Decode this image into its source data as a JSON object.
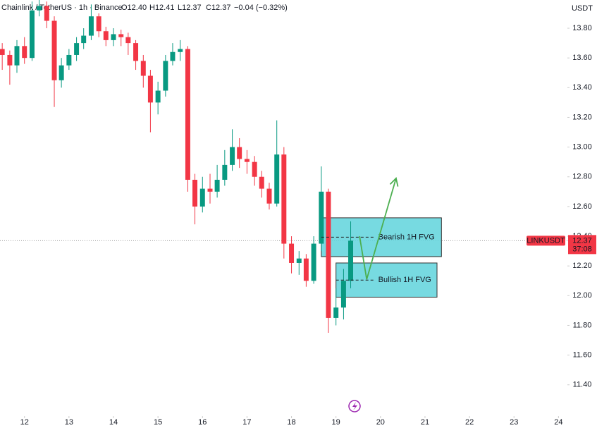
{
  "chart_data": {
    "type": "candlestick",
    "symbol": "Chainlink / TetherUS · 1h · Binance",
    "ohlc_header": [
      "O12.40",
      "H12.41",
      "L12.37",
      "C12.37",
      "−0.04 (−0.32%)"
    ],
    "axis_unit": "USDT",
    "x": [
      11.5,
      11.67,
      11.83,
      12,
      12.17,
      12.33,
      12.5,
      12.67,
      12.83,
      13,
      13.17,
      13.33,
      13.5,
      13.67,
      13.83,
      14,
      14.17,
      14.33,
      14.5,
      14.67,
      14.83,
      15,
      15.17,
      15.33,
      15.5,
      15.67,
      15.83,
      16,
      16.17,
      16.33,
      16.5,
      16.67,
      16.83,
      17,
      17.17,
      17.33,
      17.5,
      17.67,
      17.83,
      18,
      18.17,
      18.33,
      18.5,
      18.67,
      18.83,
      19,
      19.17,
      19.33
    ],
    "open": [
      13.66,
      13.62,
      13.55,
      13.68,
      13.6,
      13.92,
      13.95,
      13.85,
      13.45,
      13.55,
      13.62,
      13.7,
      13.75,
      13.88,
      13.78,
      13.72,
      13.76,
      13.74,
      13.7,
      13.58,
      13.48,
      13.3,
      13.38,
      13.58,
      13.64,
      13.66,
      12.78,
      12.6,
      12.72,
      12.7,
      12.78,
      12.88,
      13.0,
      12.92,
      12.9,
      12.8,
      12.72,
      12.62,
      12.95,
      12.35,
      12.22,
      12.25,
      12.1,
      12.35,
      12.7,
      11.85,
      11.92,
      12.1
    ],
    "high": [
      13.7,
      13.65,
      13.72,
      13.74,
      13.98,
      13.99,
      13.98,
      13.88,
      13.6,
      13.66,
      13.74,
      13.8,
      13.96,
      13.9,
      13.81,
      13.8,
      13.79,
      13.77,
      13.72,
      13.62,
      13.52,
      13.44,
      13.62,
      13.7,
      13.72,
      13.68,
      12.82,
      12.8,
      12.82,
      12.88,
      12.98,
      13.12,
      13.06,
      12.98,
      12.94,
      12.84,
      12.76,
      13.18,
      13.0,
      12.4,
      12.3,
      12.28,
      12.4,
      12.87,
      12.72,
      12.05,
      12.18,
      12.5
    ],
    "low": [
      13.52,
      13.42,
      13.5,
      13.56,
      13.58,
      13.88,
      13.8,
      13.27,
      13.4,
      13.52,
      13.58,
      13.66,
      13.72,
      13.74,
      13.68,
      13.68,
      13.68,
      13.62,
      13.52,
      13.4,
      13.1,
      13.22,
      13.34,
      13.55,
      13.58,
      12.7,
      12.48,
      12.56,
      12.62,
      12.66,
      12.74,
      12.84,
      12.86,
      12.82,
      12.74,
      12.66,
      12.58,
      12.6,
      12.25,
      12.15,
      12.14,
      12.06,
      12.08,
      12.3,
      11.75,
      11.8,
      11.84,
      12.05
    ],
    "close": [
      13.62,
      13.55,
      13.68,
      13.6,
      13.92,
      13.95,
      13.85,
      13.45,
      13.55,
      13.62,
      13.7,
      13.75,
      13.88,
      13.78,
      13.72,
      13.76,
      13.74,
      13.7,
      13.58,
      13.48,
      13.3,
      13.38,
      13.58,
      13.64,
      13.66,
      12.78,
      12.6,
      12.72,
      12.7,
      12.78,
      12.88,
      13.0,
      12.92,
      12.9,
      12.8,
      12.72,
      12.62,
      12.95,
      12.35,
      12.22,
      12.25,
      12.1,
      12.35,
      12.7,
      11.85,
      11.92,
      12.1,
      12.37
    ],
    "up_color": "#089981",
    "down_color": "#f23645",
    "xlim": [
      11.45,
      24.2
    ],
    "xticks": [
      12,
      13,
      14,
      15,
      16,
      17,
      18,
      19,
      20,
      21,
      22,
      23,
      24
    ],
    "ylim": [
      11.19,
      13.99
    ],
    "yticks": [
      {
        "value": 11.4,
        "label": "11.40"
      },
      {
        "value": 11.6,
        "label": "11.60"
      },
      {
        "value": 11.8,
        "label": "11.80"
      },
      {
        "value": 12.0,
        "label": "12.00"
      },
      {
        "value": 12.2,
        "label": "12.20"
      },
      {
        "value": 12.4,
        "label": "12.40"
      },
      {
        "value": 12.6,
        "label": "12.60"
      },
      {
        "value": 12.8,
        "label": "12.80"
      },
      {
        "value": 13.0,
        "label": "13.00"
      },
      {
        "value": 13.2,
        "label": "13.20"
      },
      {
        "value": 13.4,
        "label": "13.40"
      },
      {
        "value": 13.6,
        "label": "13.60"
      },
      {
        "value": 13.8,
        "label": "13.80"
      }
    ],
    "last_price": {
      "symbol": "LINKUSDT",
      "value": 12.37,
      "countdown": "37:08",
      "color": "#f23645"
    },
    "zones": [
      {
        "label": "Bearish 1H FVG",
        "x": [
          18.67,
          21.37
        ],
        "y": [
          12.263,
          12.524
        ],
        "color": "#5fd3dc"
      },
      {
        "label": "Bullish 1H FVG",
        "x": [
          19.0,
          21.27
        ],
        "y": [
          11.99,
          12.22
        ],
        "color": "#5fd3dc"
      }
    ],
    "arrow": {
      "x": [
        19.53,
        19.69,
        20.35
      ],
      "y": [
        12.4,
        12.11,
        12.79
      ],
      "color": "#4caf50"
    }
  }
}
